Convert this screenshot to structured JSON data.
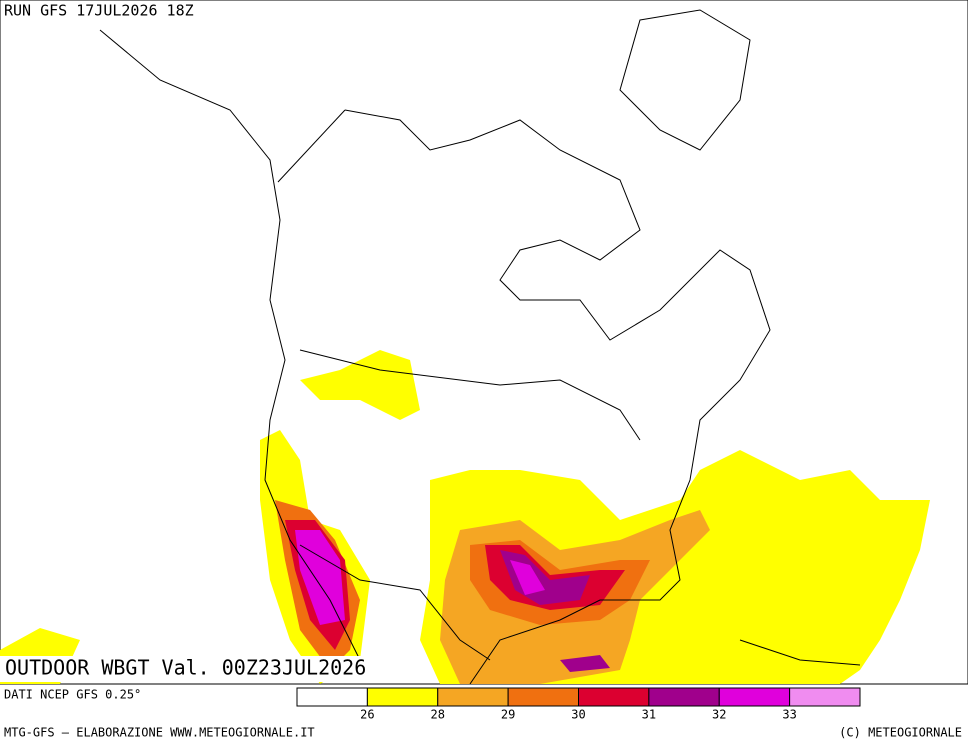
{
  "header": {
    "run": "RUN GFS 17JUL2026 18Z"
  },
  "map": {
    "title": "OUTDOOR WBGT Val. 00Z23JUL2026"
  },
  "legend": {
    "source": "DATI NCEP GFS 0.25°",
    "colors": [
      "#ffffff",
      "#ffff00",
      "#f5a623",
      "#f07010",
      "#dc0030",
      "#a0008c",
      "#e000dc",
      "#f08cf0"
    ],
    "ticks": [
      26,
      28,
      29,
      30,
      31,
      32,
      33
    ]
  },
  "footer": {
    "left": "MTG-GFS — ELABORAZIONE WWW.METEOGIORNALE.IT",
    "right": "(C) METEOGIORNALE"
  }
}
